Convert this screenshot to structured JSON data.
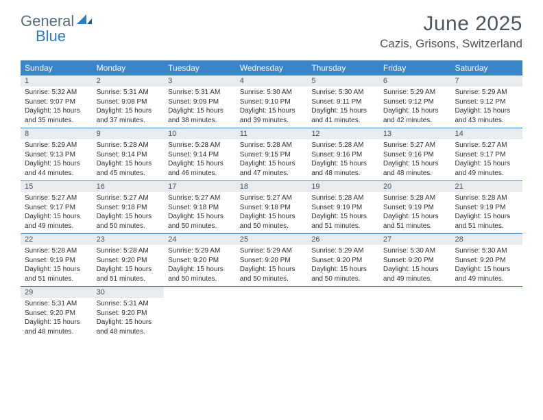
{
  "brand": {
    "part1": "General",
    "part2": "Blue"
  },
  "title": "June 2025",
  "location": "Cazis, Grisons, Switzerland",
  "colors": {
    "headerBlue": "#3a85c9",
    "daynumBg": "#e9ecef",
    "textDark": "#4a5560",
    "brandGray": "#5a6a78",
    "brandBlue": "#2f7bbf"
  },
  "dayNames": [
    "Sunday",
    "Monday",
    "Tuesday",
    "Wednesday",
    "Thursday",
    "Friday",
    "Saturday"
  ],
  "weeks": [
    [
      {
        "n": "1",
        "sr": "5:32 AM",
        "ss": "9:07 PM",
        "dl": "15 hours and 35 minutes."
      },
      {
        "n": "2",
        "sr": "5:31 AM",
        "ss": "9:08 PM",
        "dl": "15 hours and 37 minutes."
      },
      {
        "n": "3",
        "sr": "5:31 AM",
        "ss": "9:09 PM",
        "dl": "15 hours and 38 minutes."
      },
      {
        "n": "4",
        "sr": "5:30 AM",
        "ss": "9:10 PM",
        "dl": "15 hours and 39 minutes."
      },
      {
        "n": "5",
        "sr": "5:30 AM",
        "ss": "9:11 PM",
        "dl": "15 hours and 41 minutes."
      },
      {
        "n": "6",
        "sr": "5:29 AM",
        "ss": "9:12 PM",
        "dl": "15 hours and 42 minutes."
      },
      {
        "n": "7",
        "sr": "5:29 AM",
        "ss": "9:12 PM",
        "dl": "15 hours and 43 minutes."
      }
    ],
    [
      {
        "n": "8",
        "sr": "5:29 AM",
        "ss": "9:13 PM",
        "dl": "15 hours and 44 minutes."
      },
      {
        "n": "9",
        "sr": "5:28 AM",
        "ss": "9:14 PM",
        "dl": "15 hours and 45 minutes."
      },
      {
        "n": "10",
        "sr": "5:28 AM",
        "ss": "9:14 PM",
        "dl": "15 hours and 46 minutes."
      },
      {
        "n": "11",
        "sr": "5:28 AM",
        "ss": "9:15 PM",
        "dl": "15 hours and 47 minutes."
      },
      {
        "n": "12",
        "sr": "5:28 AM",
        "ss": "9:16 PM",
        "dl": "15 hours and 48 minutes."
      },
      {
        "n": "13",
        "sr": "5:27 AM",
        "ss": "9:16 PM",
        "dl": "15 hours and 48 minutes."
      },
      {
        "n": "14",
        "sr": "5:27 AM",
        "ss": "9:17 PM",
        "dl": "15 hours and 49 minutes."
      }
    ],
    [
      {
        "n": "15",
        "sr": "5:27 AM",
        "ss": "9:17 PM",
        "dl": "15 hours and 49 minutes."
      },
      {
        "n": "16",
        "sr": "5:27 AM",
        "ss": "9:18 PM",
        "dl": "15 hours and 50 minutes."
      },
      {
        "n": "17",
        "sr": "5:27 AM",
        "ss": "9:18 PM",
        "dl": "15 hours and 50 minutes."
      },
      {
        "n": "18",
        "sr": "5:27 AM",
        "ss": "9:18 PM",
        "dl": "15 hours and 50 minutes."
      },
      {
        "n": "19",
        "sr": "5:28 AM",
        "ss": "9:19 PM",
        "dl": "15 hours and 51 minutes."
      },
      {
        "n": "20",
        "sr": "5:28 AM",
        "ss": "9:19 PM",
        "dl": "15 hours and 51 minutes."
      },
      {
        "n": "21",
        "sr": "5:28 AM",
        "ss": "9:19 PM",
        "dl": "15 hours and 51 minutes."
      }
    ],
    [
      {
        "n": "22",
        "sr": "5:28 AM",
        "ss": "9:19 PM",
        "dl": "15 hours and 51 minutes."
      },
      {
        "n": "23",
        "sr": "5:28 AM",
        "ss": "9:20 PM",
        "dl": "15 hours and 51 minutes."
      },
      {
        "n": "24",
        "sr": "5:29 AM",
        "ss": "9:20 PM",
        "dl": "15 hours and 50 minutes."
      },
      {
        "n": "25",
        "sr": "5:29 AM",
        "ss": "9:20 PM",
        "dl": "15 hours and 50 minutes."
      },
      {
        "n": "26",
        "sr": "5:29 AM",
        "ss": "9:20 PM",
        "dl": "15 hours and 50 minutes."
      },
      {
        "n": "27",
        "sr": "5:30 AM",
        "ss": "9:20 PM",
        "dl": "15 hours and 49 minutes."
      },
      {
        "n": "28",
        "sr": "5:30 AM",
        "ss": "9:20 PM",
        "dl": "15 hours and 49 minutes."
      }
    ],
    [
      {
        "n": "29",
        "sr": "5:31 AM",
        "ss": "9:20 PM",
        "dl": "15 hours and 48 minutes."
      },
      {
        "n": "30",
        "sr": "5:31 AM",
        "ss": "9:20 PM",
        "dl": "15 hours and 48 minutes."
      },
      null,
      null,
      null,
      null,
      null
    ]
  ],
  "labels": {
    "sunrise": "Sunrise: ",
    "sunset": "Sunset: ",
    "daylight": "Daylight: "
  }
}
